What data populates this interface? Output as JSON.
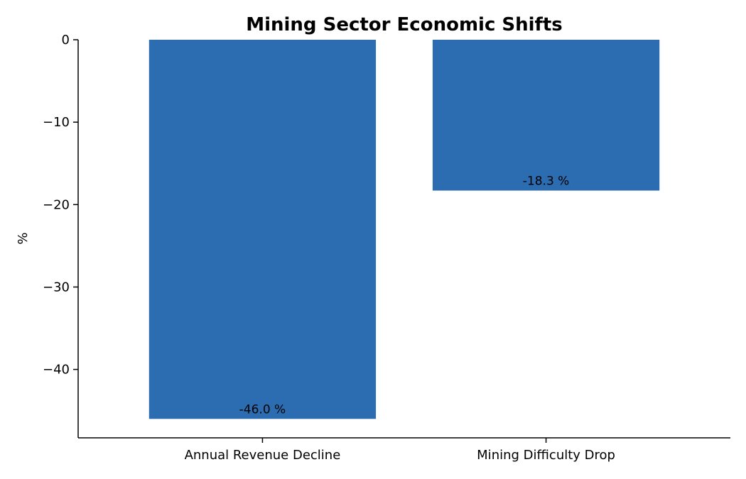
{
  "chart_data": {
    "type": "bar",
    "title": "Mining Sector Economic Shifts",
    "xlabel": "",
    "ylabel": "%",
    "categories": [
      "Annual Revenue Decline",
      "Mining Difficulty Drop"
    ],
    "values": [
      -46.0,
      -18.3
    ],
    "data_labels": [
      "-46.0 %",
      "-18.3 %"
    ],
    "ylim": [
      -48.3,
      0
    ],
    "yticks": [
      0,
      -10,
      -20,
      -30,
      -40
    ],
    "ytick_labels": [
      "0",
      "−10",
      "−20",
      "−30",
      "−40"
    ],
    "bar_color": "#2c6cb0",
    "grid": false,
    "legend": "none"
  }
}
